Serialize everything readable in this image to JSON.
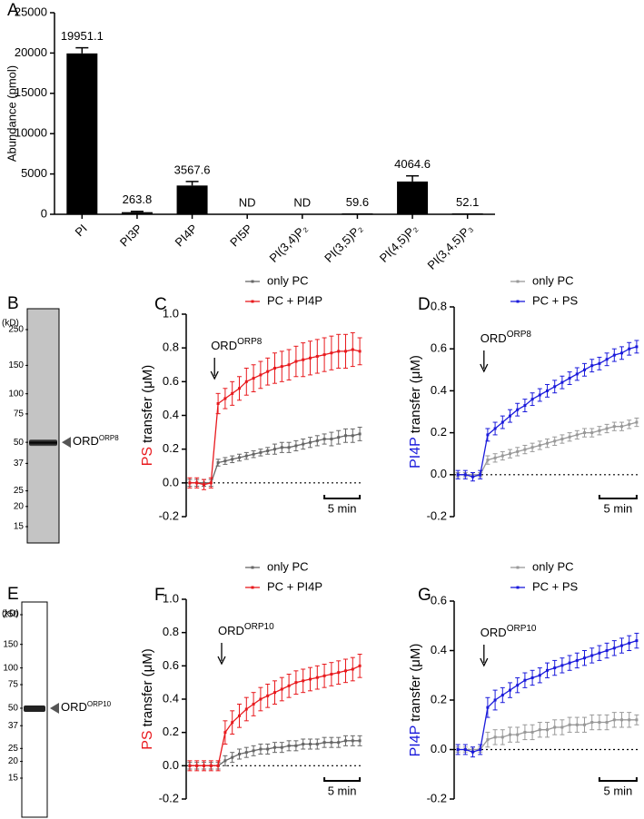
{
  "chart_data": [
    {
      "type": "bar",
      "letter": "A",
      "ylabel": "Abundance (pmol)",
      "categories": [
        "PI",
        "PI3P",
        "PI4P",
        "PI5P",
        "PI(3,4)P₂",
        "PI(3,5)P₂",
        "PI(4,5)P₂",
        "PI(3,4,5)P₃"
      ],
      "values": [
        19951.1,
        263.8,
        3567.6,
        null,
        null,
        59.6,
        4064.6,
        52.1
      ],
      "errors": [
        700,
        100,
        500,
        null,
        null,
        0,
        700,
        0
      ],
      "value_labels": [
        "19951.1",
        "263.8",
        "3567.6",
        "ND",
        "ND",
        "59.6",
        "4064.6",
        "52.1"
      ],
      "color": "#000000",
      "ylim": [
        0,
        25000
      ],
      "yticks": [
        0,
        5000,
        10000,
        15000,
        20000,
        25000
      ]
    },
    {
      "type": "line",
      "letter": "C",
      "ylabel_prefix": "PS",
      "ylabel_prefix_color": "#e8191d",
      "ylabel": "transfer (μM)",
      "annotation": "ORD",
      "annotation_sup": "ORP8",
      "scale_bar": {
        "label": "5 min",
        "length": 5
      },
      "x": [
        0,
        1,
        2,
        3,
        4,
        5,
        6,
        7,
        8,
        9,
        10,
        11,
        12,
        13,
        14,
        15,
        16,
        17,
        18,
        19,
        20,
        21,
        22,
        23,
        24
      ],
      "xlim": [
        -0.5,
        24.5
      ],
      "ylim": [
        -0.2,
        1.0
      ],
      "yticks": [
        -0.2,
        {
          "value": 0,
          "label": "0.0"
        },
        0.2,
        0.4,
        0.6,
        0.8,
        {
          "value": 1,
          "label": "1.0"
        }
      ],
      "series": [
        {
          "name": "only PC",
          "color": "#666666",
          "values": [
            0,
            0,
            0,
            0,
            0.12,
            0.13,
            0.14,
            0.15,
            0.16,
            0.17,
            0.18,
            0.19,
            0.2,
            0.21,
            0.21,
            0.22,
            0.23,
            0.24,
            0.25,
            0.26,
            0.26,
            0.27,
            0.28,
            0.28,
            0.29
          ],
          "errors": [
            0.02,
            0.02,
            0.02,
            0.02,
            0.02,
            0.02,
            0.02,
            0.02,
            0.02,
            0.02,
            0.02,
            0.02,
            0.03,
            0.03,
            0.03,
            0.03,
            0.03,
            0.03,
            0.03,
            0.03,
            0.04,
            0.04,
            0.04,
            0.04,
            0.04
          ]
        },
        {
          "name": "PC + PI4P",
          "color": "#e8191d",
          "values": [
            0,
            0,
            -0.01,
            0,
            0.47,
            0.5,
            0.53,
            0.56,
            0.6,
            0.62,
            0.64,
            0.66,
            0.68,
            0.69,
            0.7,
            0.72,
            0.73,
            0.74,
            0.75,
            0.76,
            0.77,
            0.78,
            0.78,
            0.79,
            0.78
          ],
          "errors": [
            0.03,
            0.03,
            0.03,
            0.03,
            0.06,
            0.06,
            0.07,
            0.07,
            0.08,
            0.08,
            0.08,
            0.08,
            0.09,
            0.09,
            0.09,
            0.09,
            0.1,
            0.1,
            0.1,
            0.1,
            0.1,
            0.1,
            0.1,
            0.1,
            0.08
          ]
        }
      ]
    },
    {
      "type": "line",
      "letter": "D",
      "ylabel_prefix": "PI4P",
      "ylabel_prefix_color": "#1a1adb",
      "ylabel": "transfer (μM)",
      "annotation": "ORD",
      "annotation_sup": "ORP8",
      "scale_bar": {
        "label": "5 min",
        "length": 5
      },
      "x": [
        0,
        1,
        2,
        3,
        4,
        5,
        6,
        7,
        8,
        9,
        10,
        11,
        12,
        13,
        14,
        15,
        16,
        17,
        18,
        19,
        20,
        21,
        22,
        23,
        24
      ],
      "xlim": [
        -0.5,
        24.5
      ],
      "ylim": [
        -0.2,
        0.8
      ],
      "yticks": [
        -0.2,
        {
          "value": 0,
          "label": "0.0"
        },
        0.2,
        0.4,
        0.6,
        0.8
      ],
      "series": [
        {
          "name": "only PC",
          "color": "#999999",
          "values": [
            0,
            0,
            0,
            0,
            0.07,
            0.08,
            0.09,
            0.1,
            0.11,
            0.12,
            0.13,
            0.14,
            0.15,
            0.16,
            0.17,
            0.18,
            0.19,
            0.2,
            0.2,
            0.21,
            0.22,
            0.23,
            0.23,
            0.24,
            0.25
          ],
          "errors": [
            0.01,
            0.01,
            0.01,
            0.01,
            0.02,
            0.02,
            0.02,
            0.02,
            0.02,
            0.02,
            0.02,
            0.02,
            0.02,
            0.02,
            0.02,
            0.02,
            0.02,
            0.02,
            0.02,
            0.02,
            0.02,
            0.02,
            0.02,
            0.02,
            0.02
          ]
        },
        {
          "name": "PC + PS",
          "color": "#1a1adb",
          "values": [
            0,
            0,
            -0.01,
            0,
            0.19,
            0.22,
            0.25,
            0.28,
            0.31,
            0.33,
            0.36,
            0.38,
            0.4,
            0.42,
            0.44,
            0.46,
            0.48,
            0.5,
            0.52,
            0.53,
            0.55,
            0.57,
            0.58,
            0.6,
            0.61
          ],
          "errors": [
            0.02,
            0.02,
            0.02,
            0.02,
            0.03,
            0.03,
            0.03,
            0.03,
            0.03,
            0.03,
            0.03,
            0.03,
            0.03,
            0.03,
            0.03,
            0.03,
            0.03,
            0.03,
            0.03,
            0.03,
            0.03,
            0.03,
            0.03,
            0.03,
            0.03
          ]
        }
      ]
    },
    {
      "type": "line",
      "letter": "F",
      "ylabel_prefix": "PS",
      "ylabel_prefix_color": "#e8191d",
      "ylabel": "transfer (μM)",
      "annotation": "ORD",
      "annotation_sup": "ORP10",
      "scale_bar": {
        "label": "5 min",
        "length": 5
      },
      "x": [
        0,
        1,
        2,
        3,
        4,
        5,
        6,
        7,
        8,
        9,
        10,
        11,
        12,
        13,
        14,
        15,
        16,
        17,
        18,
        19,
        20,
        21,
        22,
        23,
        24
      ],
      "xlim": [
        -0.5,
        24.5
      ],
      "ylim": [
        -0.2,
        1.0
      ],
      "yticks": [
        -0.2,
        {
          "value": 0,
          "label": "0.0"
        },
        0.2,
        0.4,
        0.6,
        0.8,
        {
          "value": 1,
          "label": "1.0"
        }
      ],
      "series": [
        {
          "name": "only PC",
          "color": "#666666",
          "values": [
            0,
            0,
            0,
            0,
            0,
            0.03,
            0.05,
            0.07,
            0.08,
            0.09,
            0.1,
            0.1,
            0.11,
            0.11,
            0.12,
            0.12,
            0.13,
            0.13,
            0.13,
            0.14,
            0.14,
            0.14,
            0.15,
            0.15,
            0.15
          ],
          "errors": [
            0.02,
            0.02,
            0.02,
            0.02,
            0.02,
            0.03,
            0.03,
            0.03,
            0.03,
            0.03,
            0.03,
            0.03,
            0.03,
            0.03,
            0.03,
            0.03,
            0.03,
            0.03,
            0.03,
            0.03,
            0.03,
            0.03,
            0.03,
            0.03,
            0.03
          ]
        },
        {
          "name": "PC + PI4P",
          "color": "#e8191d",
          "values": [
            0,
            0,
            0,
            0,
            0,
            0.2,
            0.26,
            0.3,
            0.34,
            0.37,
            0.4,
            0.42,
            0.44,
            0.46,
            0.48,
            0.5,
            0.51,
            0.52,
            0.53,
            0.54,
            0.55,
            0.56,
            0.57,
            0.58,
            0.6
          ],
          "errors": [
            0.03,
            0.03,
            0.03,
            0.03,
            0.03,
            0.07,
            0.07,
            0.07,
            0.07,
            0.07,
            0.07,
            0.07,
            0.07,
            0.07,
            0.07,
            0.07,
            0.07,
            0.07,
            0.07,
            0.07,
            0.07,
            0.07,
            0.07,
            0.07,
            0.07
          ]
        }
      ]
    },
    {
      "type": "line",
      "letter": "G",
      "ylabel_prefix": "PI4P",
      "ylabel_prefix_color": "#1a1adb",
      "ylabel": "transfer (μM)",
      "annotation": "ORD",
      "annotation_sup": "ORP10",
      "scale_bar": {
        "label": "5 min",
        "length": 5
      },
      "x": [
        0,
        1,
        2,
        3,
        4,
        5,
        6,
        7,
        8,
        9,
        10,
        11,
        12,
        13,
        14,
        15,
        16,
        17,
        18,
        19,
        20,
        21,
        22,
        23,
        24
      ],
      "xlim": [
        -0.5,
        24.5
      ],
      "ylim": [
        -0.2,
        0.6
      ],
      "yticks": [
        -0.2,
        {
          "value": 0,
          "label": "0.0"
        },
        0.2,
        0.4,
        0.6
      ],
      "series": [
        {
          "name": "only PC",
          "color": "#999999",
          "values": [
            0,
            0,
            0,
            0,
            0.04,
            0.05,
            0.05,
            0.06,
            0.06,
            0.07,
            0.07,
            0.08,
            0.08,
            0.09,
            0.09,
            0.1,
            0.1,
            0.1,
            0.11,
            0.11,
            0.11,
            0.12,
            0.12,
            0.12,
            0.12
          ],
          "errors": [
            0.01,
            0.01,
            0.01,
            0.01,
            0.03,
            0.03,
            0.03,
            0.03,
            0.03,
            0.03,
            0.03,
            0.03,
            0.03,
            0.03,
            0.03,
            0.03,
            0.03,
            0.03,
            0.03,
            0.03,
            0.03,
            0.03,
            0.03,
            0.03,
            0.02
          ]
        },
        {
          "name": "PC + PS",
          "color": "#1a1adb",
          "values": [
            0,
            0,
            -0.01,
            0,
            0.17,
            0.2,
            0.22,
            0.24,
            0.26,
            0.28,
            0.29,
            0.3,
            0.32,
            0.33,
            0.34,
            0.35,
            0.36,
            0.37,
            0.38,
            0.39,
            0.4,
            0.41,
            0.42,
            0.43,
            0.44
          ],
          "errors": [
            0.02,
            0.02,
            0.02,
            0.02,
            0.04,
            0.04,
            0.03,
            0.03,
            0.03,
            0.03,
            0.03,
            0.03,
            0.03,
            0.03,
            0.03,
            0.03,
            0.03,
            0.03,
            0.03,
            0.03,
            0.03,
            0.03,
            0.03,
            0.03,
            0.03
          ]
        }
      ]
    }
  ],
  "gels": [
    {
      "letter": "B",
      "unit": "(kD)",
      "ladder": [
        250,
        150,
        100,
        75,
        50,
        37,
        25,
        20,
        15
      ],
      "band_label": "ORD",
      "band_sup": "ORP8"
    },
    {
      "letter": "E",
      "unit": "(kD)",
      "ladder": [
        250,
        150,
        100,
        75,
        50,
        37,
        25,
        20,
        15
      ],
      "band_label": "ORD",
      "band_sup": "ORP10"
    }
  ]
}
